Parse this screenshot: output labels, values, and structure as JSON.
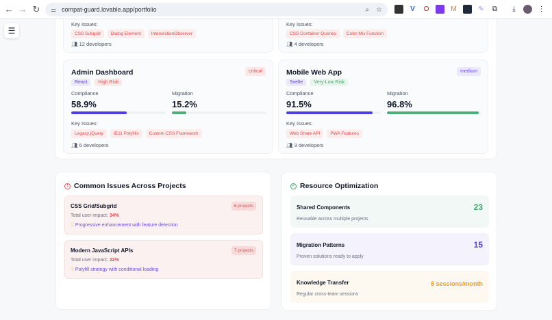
{
  "browser": {
    "url": "compat-guard.lovable.app/portfolio"
  },
  "top_cards": [
    {
      "key_issues_label": "Key Issues:",
      "issues": [
        "CSS Subgrid",
        "Dialog Element",
        "IntersectionObserver"
      ],
      "developers": "12 developers"
    },
    {
      "key_issues_label": "Key Issues:",
      "issues": [
        "CSS Container Queries",
        "Color Mix Function"
      ],
      "developers": "4 developers"
    }
  ],
  "projects": [
    {
      "name": "Admin Dashboard",
      "priority": "critical",
      "framework": "React",
      "risk": "High Risk",
      "compliance_label": "Compliance",
      "compliance": "58.9%",
      "compliance_value": 58.9,
      "migration_label": "Migration",
      "migration": "15.2%",
      "migration_value": 15.2,
      "key_issues_label": "Key Issues:",
      "issues": [
        "Legacy jQuery",
        "IE11 Polyfills",
        "Custom CSS Framework"
      ],
      "developers": "6 developers"
    },
    {
      "name": "Mobile Web App",
      "priority": "medium",
      "framework": "Svelte",
      "risk": "Very-Low Risk",
      "compliance_label": "Compliance",
      "compliance": "91.5%",
      "compliance_value": 91.5,
      "migration_label": "Migration",
      "migration": "96.8%",
      "migration_value": 96.8,
      "key_issues_label": "Key Issues:",
      "issues": [
        "Web Share API",
        "PWA Features"
      ],
      "developers": "3 developers"
    }
  ],
  "common_issues": {
    "title": "Common Issues Across Projects",
    "items": [
      {
        "name": "CSS Grid/Subgrid",
        "count": "6 projects",
        "impact_label": "Total user impact:",
        "impact": "34%",
        "solution": "Progressive enhancement with feature detection"
      },
      {
        "name": "Modern JavaScript APIs",
        "count": "7 projects",
        "impact_label": "Total user impact:",
        "impact": "22%",
        "solution": "Polyfill strategy with conditional loading"
      }
    ]
  },
  "resource_optimization": {
    "title": "Resource Optimization",
    "items": [
      {
        "name": "Shared Components",
        "desc": "Reusable across multiple projects",
        "value": "23",
        "color": "#3fa66b",
        "bg": "#f2f8f5"
      },
      {
        "name": "Migration Patterns",
        "desc": "Proven solutions ready to apply",
        "value": "15",
        "color": "#5b3fe0",
        "bg": "#f3f2fd"
      },
      {
        "name": "Knowledge Transfer",
        "desc": "Regular cross-team sessions",
        "value": "8 sessions/month",
        "color": "#f0a030",
        "bg": "#fdf8f0"
      }
    ]
  }
}
